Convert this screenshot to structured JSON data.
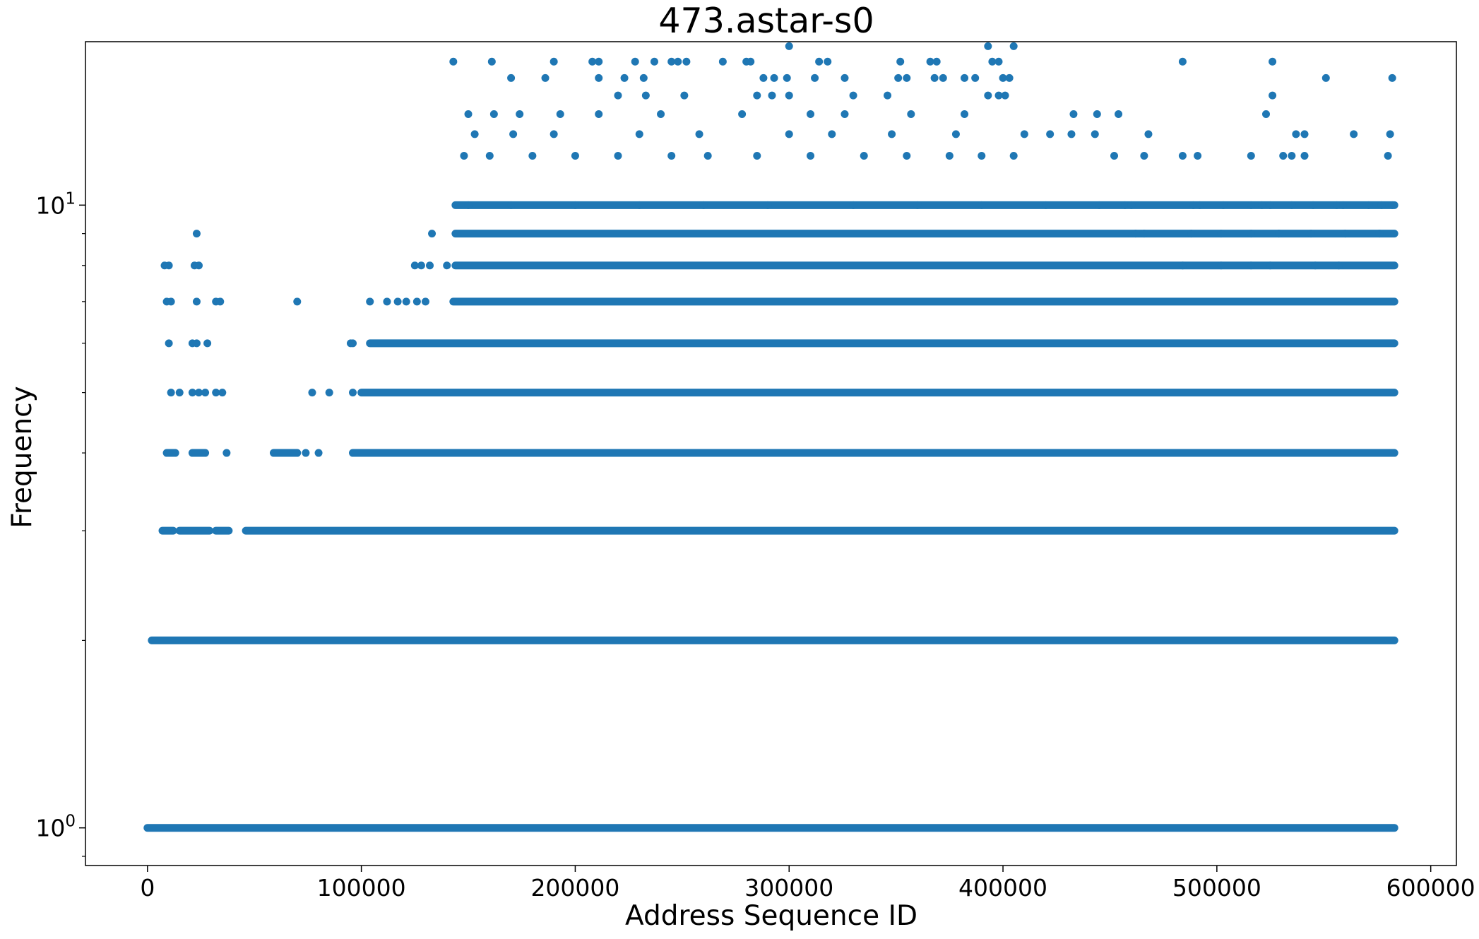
{
  "chart_data": {
    "type": "scatter",
    "title": "473.astar-s0",
    "xlabel": "Address Sequence ID",
    "ylabel": "Frequency",
    "y_scale": "log",
    "xlim": [
      -29000,
      612000
    ],
    "ylim": [
      0.87,
      18.3
    ],
    "x_ticks": [
      0,
      100000,
      200000,
      300000,
      400000,
      500000,
      600000
    ],
    "x_tick_labels": [
      "0",
      "100000",
      "200000",
      "300000",
      "400000",
      "500000",
      "600000"
    ],
    "y_ticks": [
      1,
      10
    ],
    "y_tick_labels": [
      {
        "base": "10",
        "exp": "0"
      },
      {
        "base": "10",
        "exp": "1"
      }
    ],
    "grid": false,
    "marker_color": "#1f77b4",
    "x_max": 583000,
    "bands": [
      {
        "frequency": 1,
        "segments": [
          [
            0,
            583000
          ]
        ]
      },
      {
        "frequency": 2,
        "segments": [
          [
            2000,
            583000
          ]
        ]
      },
      {
        "frequency": 3,
        "segments": [
          [
            7000,
            12000
          ],
          [
            15000,
            29000
          ],
          [
            32000,
            38000
          ],
          [
            46000,
            583000
          ]
        ]
      },
      {
        "frequency": 4,
        "segments": [
          [
            9000,
            13000
          ],
          [
            21000,
            27000
          ],
          [
            59000,
            70000
          ],
          [
            96000,
            583000
          ]
        ]
      },
      {
        "frequency": 5,
        "segments": [
          [
            100000,
            583000
          ]
        ]
      },
      {
        "frequency": 6,
        "segments": [
          [
            104000,
            583000
          ]
        ]
      },
      {
        "frequency": 7,
        "segments": [
          [
            143000,
            583000
          ]
        ]
      },
      {
        "frequency": 8,
        "segments": [
          [
            144000,
            583000
          ]
        ]
      },
      {
        "frequency": 9,
        "segments": [
          [
            144000,
            583000
          ]
        ]
      },
      {
        "frequency": 10,
        "segments": [
          [
            144000,
            583000
          ]
        ]
      }
    ],
    "points": [
      [
        10000,
        8
      ],
      [
        8000,
        8
      ],
      [
        22000,
        8
      ],
      [
        24000,
        8
      ],
      [
        23000,
        9
      ],
      [
        9000,
        7
      ],
      [
        11000,
        7
      ],
      [
        23000,
        7
      ],
      [
        32000,
        7
      ],
      [
        34000,
        7
      ],
      [
        70000,
        7
      ],
      [
        10000,
        6
      ],
      [
        21000,
        6
      ],
      [
        23000,
        6
      ],
      [
        28000,
        6
      ],
      [
        96000,
        6
      ],
      [
        11000,
        5
      ],
      [
        15000,
        5
      ],
      [
        21000,
        5
      ],
      [
        24000,
        5
      ],
      [
        27000,
        5
      ],
      [
        32000,
        5
      ],
      [
        35000,
        5
      ],
      [
        77000,
        5
      ],
      [
        85000,
        5
      ],
      [
        96000,
        5
      ],
      [
        37000,
        4
      ],
      [
        74000,
        4
      ],
      [
        80000,
        4
      ],
      [
        95000,
        6
      ],
      [
        104000,
        7
      ],
      [
        112000,
        7
      ],
      [
        117000,
        7
      ],
      [
        121000,
        7
      ],
      [
        126000,
        7
      ],
      [
        130000,
        7
      ],
      [
        125000,
        8
      ],
      [
        128000,
        8
      ],
      [
        132000,
        8
      ],
      [
        133000,
        9
      ],
      [
        140000,
        8
      ],
      [
        143000,
        17
      ],
      [
        161000,
        17
      ],
      [
        190000,
        17
      ],
      [
        208000,
        17
      ],
      [
        211000,
        17
      ],
      [
        228000,
        17
      ],
      [
        237000,
        17
      ],
      [
        245000,
        17
      ],
      [
        248000,
        17
      ],
      [
        252000,
        17
      ],
      [
        269000,
        17
      ],
      [
        280000,
        17
      ],
      [
        282000,
        17
      ],
      [
        314000,
        17
      ],
      [
        318000,
        17
      ],
      [
        352000,
        17
      ],
      [
        366000,
        17
      ],
      [
        369000,
        17
      ],
      [
        395000,
        17
      ],
      [
        398000,
        17
      ],
      [
        484000,
        17
      ],
      [
        526000,
        17
      ],
      [
        300000,
        18
      ],
      [
        393000,
        18
      ],
      [
        405000,
        18
      ],
      [
        170000,
        16
      ],
      [
        186000,
        16
      ],
      [
        211000,
        16
      ],
      [
        223000,
        16
      ],
      [
        232000,
        16
      ],
      [
        288000,
        16
      ],
      [
        293000,
        16
      ],
      [
        299000,
        16
      ],
      [
        312000,
        16
      ],
      [
        326000,
        16
      ],
      [
        351000,
        16
      ],
      [
        355000,
        16
      ],
      [
        368000,
        16
      ],
      [
        372000,
        16
      ],
      [
        382000,
        16
      ],
      [
        387000,
        16
      ],
      [
        400000,
        16
      ],
      [
        403000,
        16
      ],
      [
        551000,
        16
      ],
      [
        582000,
        16
      ],
      [
        220000,
        15
      ],
      [
        233000,
        15
      ],
      [
        251000,
        15
      ],
      [
        285000,
        15
      ],
      [
        292000,
        15
      ],
      [
        300000,
        15
      ],
      [
        330000,
        15
      ],
      [
        346000,
        15
      ],
      [
        393000,
        15
      ],
      [
        398000,
        15
      ],
      [
        401000,
        15
      ],
      [
        526000,
        15
      ],
      [
        150000,
        14
      ],
      [
        162000,
        14
      ],
      [
        174000,
        14
      ],
      [
        193000,
        14
      ],
      [
        211000,
        14
      ],
      [
        240000,
        14
      ],
      [
        278000,
        14
      ],
      [
        310000,
        14
      ],
      [
        326000,
        14
      ],
      [
        357000,
        14
      ],
      [
        382000,
        14
      ],
      [
        433000,
        14
      ],
      [
        444000,
        14
      ],
      [
        454000,
        14
      ],
      [
        523000,
        14
      ],
      [
        153000,
        13
      ],
      [
        171000,
        13
      ],
      [
        190000,
        13
      ],
      [
        230000,
        13
      ],
      [
        258000,
        13
      ],
      [
        300000,
        13
      ],
      [
        320000,
        13
      ],
      [
        348000,
        13
      ],
      [
        378000,
        13
      ],
      [
        410000,
        13
      ],
      [
        422000,
        13
      ],
      [
        432000,
        13
      ],
      [
        443000,
        13
      ],
      [
        468000,
        13
      ],
      [
        537000,
        13
      ],
      [
        541000,
        13
      ],
      [
        564000,
        13
      ],
      [
        581000,
        13
      ],
      [
        148000,
        12
      ],
      [
        160000,
        12
      ],
      [
        180000,
        12
      ],
      [
        200000,
        12
      ],
      [
        220000,
        12
      ],
      [
        245000,
        12
      ],
      [
        262000,
        12
      ],
      [
        285000,
        12
      ],
      [
        310000,
        12
      ],
      [
        335000,
        12
      ],
      [
        355000,
        12
      ],
      [
        375000,
        12
      ],
      [
        390000,
        12
      ],
      [
        405000,
        12
      ],
      [
        452000,
        12
      ],
      [
        466000,
        12
      ],
      [
        484000,
        12
      ],
      [
        491000,
        12
      ],
      [
        516000,
        12
      ],
      [
        531000,
        12
      ],
      [
        535000,
        12
      ],
      [
        541000,
        12
      ],
      [
        580000,
        12
      ],
      [
        150000,
        10
      ],
      [
        170000,
        10
      ],
      [
        200000,
        10
      ],
      [
        230000,
        10
      ],
      [
        260000,
        10
      ],
      [
        290000,
        10
      ],
      [
        330000,
        10
      ],
      [
        360000,
        10
      ],
      [
        390000,
        10
      ],
      [
        420000,
        10
      ],
      [
        445000,
        10
      ],
      [
        457000,
        10
      ],
      [
        460000,
        10
      ],
      [
        489000,
        10
      ],
      [
        492000,
        10
      ],
      [
        503000,
        10
      ],
      [
        516000,
        10
      ],
      [
        521000,
        10
      ],
      [
        525000,
        10
      ],
      [
        535000,
        10
      ],
      [
        545000,
        10
      ],
      [
        556000,
        10
      ],
      [
        559000,
        10
      ],
      [
        571000,
        10
      ],
      [
        577000,
        10
      ],
      [
        582000,
        10
      ],
      [
        462000,
        9
      ],
      [
        466000,
        9
      ],
      [
        488000,
        9
      ],
      [
        502000,
        9
      ],
      [
        516000,
        9
      ],
      [
        529000,
        9
      ],
      [
        544000,
        9
      ],
      [
        560000,
        9
      ],
      [
        576000,
        9
      ],
      [
        484000,
        8
      ],
      [
        502000,
        8
      ],
      [
        516000,
        8
      ],
      [
        525000,
        8
      ],
      [
        546000,
        8
      ],
      [
        557000,
        8
      ]
    ]
  }
}
